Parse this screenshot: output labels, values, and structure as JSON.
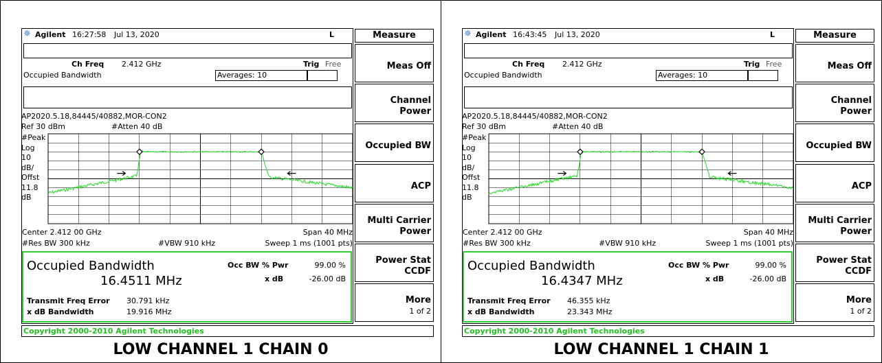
{
  "panels": [
    {
      "header": {
        "brand": "Agilent",
        "time": "16:27:58",
        "date": "Jul 13, 2020",
        "mode": "L"
      },
      "ch_freq_label": "Ch Freq",
      "ch_freq": "2.412 GHz",
      "trig_label": "Trig",
      "trig": "Free",
      "meas_name": "Occupied Bandwidth",
      "averages": "Averages: 10",
      "file": "AP2020.5.18,84445/40882,MOR-CON2",
      "ref": "Ref 30 dBm",
      "atten": "#Atten 40 dB",
      "scale_labels": [
        "#Peak",
        "Log",
        "10",
        "dB/",
        "Offst",
        "11.8",
        "dB"
      ],
      "center": "Center 2.412 00 GHz",
      "span": "Span 40 MHz",
      "res_bw": "#Res BW 300 kHz",
      "vbw": "#VBW 910 kHz",
      "sweep": "Sweep 1 ms (1001 pts)",
      "result": {
        "title": "Occupied Bandwidth",
        "value": "16.4511 MHz",
        "pwr_label": "Occ BW % Pwr",
        "pwr": "99.00 %",
        "xdb_label": "x dB",
        "xdb": "-26.00 dB",
        "tfe_label": "Transmit Freq Error",
        "tfe": "30.791 kHz",
        "xbw_label": "x dB Bandwidth",
        "xbw": "19.916 MHz"
      },
      "menu_title": "Measure",
      "softkeys": [
        {
          "label": "Meas Off"
        },
        {
          "label": "Channel Power"
        },
        {
          "label": "Occupied BW"
        },
        {
          "label": "ACP"
        },
        {
          "label": "Multi Carrier Power"
        },
        {
          "label": "Power Stat CCDF"
        },
        {
          "label": "More",
          "sub": "1 of 2"
        }
      ],
      "copyright": "Copyright 2000-2010 Agilent Technologies",
      "caption": "LOW CHANNEL 1 CHAIN 0"
    },
    {
      "header": {
        "brand": "Agilent",
        "time": "16:43:45",
        "date": "Jul 13, 2020",
        "mode": "L"
      },
      "ch_freq_label": "Ch Freq",
      "ch_freq": "2.412 GHz",
      "trig_label": "Trig",
      "trig": "Free",
      "meas_name": "Occupied Bandwidth",
      "averages": "Averages: 10",
      "file": "AP2020.5.18,84445/40882,MOR-CON2",
      "ref": "Ref 30 dBm",
      "atten": "#Atten 40 dB",
      "scale_labels": [
        "#Peak",
        "Log",
        "10",
        "dB/",
        "Offst",
        "11.8",
        "dB"
      ],
      "center": "Center 2.412 00 GHz",
      "span": "Span 40 MHz",
      "res_bw": "#Res BW 300 kHz",
      "vbw": "#VBW 910 kHz",
      "sweep": "Sweep 1 ms (1001 pts)",
      "result": {
        "title": "Occupied Bandwidth",
        "value": "16.4347 MHz",
        "pwr_label": "Occ BW % Pwr",
        "pwr": "99.00 %",
        "xdb_label": "x dB",
        "xdb": "-26.00 dB",
        "tfe_label": "Transmit Freq Error",
        "tfe": "46.355 kHz",
        "xbw_label": "x dB Bandwidth",
        "xbw": "23.343 MHz"
      },
      "menu_title": "Measure",
      "softkeys": [
        {
          "label": "Meas Off"
        },
        {
          "label": "Channel Power"
        },
        {
          "label": "Occupied BW"
        },
        {
          "label": "ACP"
        },
        {
          "label": "Multi Carrier Power"
        },
        {
          "label": "Power Stat CCDF"
        },
        {
          "label": "More",
          "sub": "1 of 2"
        }
      ],
      "copyright": "Copyright 2000-2010 Agilent Technologies",
      "caption": "LOW CHANNEL 1 CHAIN 1"
    }
  ]
}
